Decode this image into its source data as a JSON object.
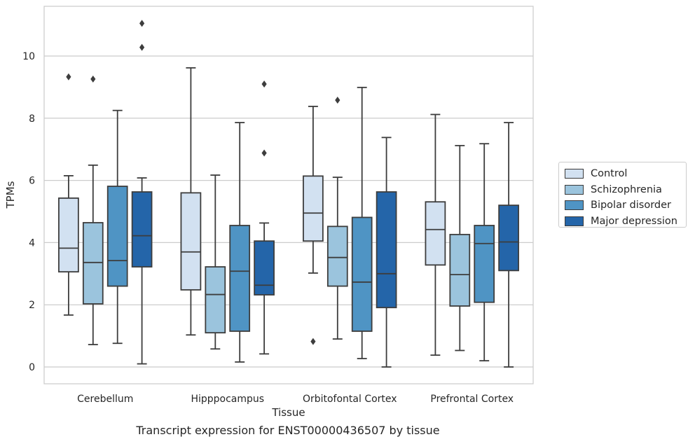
{
  "caption": "Transcript expression for ENST00000436507 by tissue",
  "colors": {
    "Control": "#d2e1f1",
    "Schizophrenia": "#9bc4dd",
    "Bipolar disorder": "#4f94c4",
    "Major depression": "#2465a9"
  },
  "chart_data": {
    "type": "box",
    "xlabel": "Tissue",
    "ylabel": "TPMs",
    "ylim": [
      -0.5,
      11.6
    ],
    "yticks": [
      0,
      2,
      4,
      6,
      8,
      10
    ],
    "grid": true,
    "legend_position": "right",
    "categories": [
      "Cerebellum",
      "Hipppocampus",
      "Orbitofontal Cortex",
      "Prefrontal Cortex"
    ],
    "series": [
      {
        "name": "Control",
        "boxes": [
          {
            "whislo": 1.67,
            "q1": 3.06,
            "med": 3.82,
            "q3": 5.43,
            "whishi": 6.15,
            "fliers": [
              9.33
            ]
          },
          {
            "whislo": 1.03,
            "q1": 2.48,
            "med": 3.7,
            "q3": 5.6,
            "whishi": 9.62,
            "fliers": []
          },
          {
            "whislo": 3.02,
            "q1": 4.05,
            "med": 4.95,
            "q3": 6.14,
            "whishi": 8.38,
            "fliers": [
              0.82
            ]
          },
          {
            "whislo": 0.38,
            "q1": 3.28,
            "med": 4.42,
            "q3": 5.31,
            "whishi": 8.12,
            "fliers": []
          }
        ]
      },
      {
        "name": "Schizophrenia",
        "boxes": [
          {
            "whislo": 0.72,
            "q1": 2.03,
            "med": 3.36,
            "q3": 4.64,
            "whishi": 6.49,
            "fliers": [
              9.26
            ]
          },
          {
            "whislo": 0.58,
            "q1": 1.1,
            "med": 2.33,
            "q3": 3.22,
            "whishi": 6.17,
            "fliers": []
          },
          {
            "whislo": 0.9,
            "q1": 2.6,
            "med": 3.52,
            "q3": 4.52,
            "whishi": 6.1,
            "fliers": [
              8.58
            ]
          },
          {
            "whislo": 0.53,
            "q1": 1.96,
            "med": 2.97,
            "q3": 4.26,
            "whishi": 7.12,
            "fliers": []
          }
        ]
      },
      {
        "name": "Bipolar disorder",
        "boxes": [
          {
            "whislo": 0.76,
            "q1": 2.6,
            "med": 3.42,
            "q3": 5.81,
            "whishi": 8.25,
            "fliers": []
          },
          {
            "whislo": 0.16,
            "q1": 1.15,
            "med": 3.08,
            "q3": 4.55,
            "whishi": 7.86,
            "fliers": []
          },
          {
            "whislo": 0.27,
            "q1": 1.15,
            "med": 2.73,
            "q3": 4.81,
            "whishi": 8.99,
            "fliers": []
          },
          {
            "whislo": 0.2,
            "q1": 2.08,
            "med": 3.97,
            "q3": 4.55,
            "whishi": 7.18,
            "fliers": []
          }
        ]
      },
      {
        "name": "Major depression",
        "boxes": [
          {
            "whislo": 0.1,
            "q1": 3.22,
            "med": 4.22,
            "q3": 5.63,
            "whishi": 6.08,
            "fliers": [
              10.28,
              11.05
            ]
          },
          {
            "whislo": 0.42,
            "q1": 2.32,
            "med": 2.63,
            "q3": 4.05,
            "whishi": 4.63,
            "fliers": [
              6.88,
              9.1
            ]
          },
          {
            "whislo": 0.0,
            "q1": 1.91,
            "med": 3.0,
            "q3": 5.63,
            "whishi": 7.38,
            "fliers": []
          },
          {
            "whislo": 0.0,
            "q1": 3.1,
            "med": 4.02,
            "q3": 5.2,
            "whishi": 7.86,
            "fliers": []
          }
        ]
      }
    ]
  }
}
